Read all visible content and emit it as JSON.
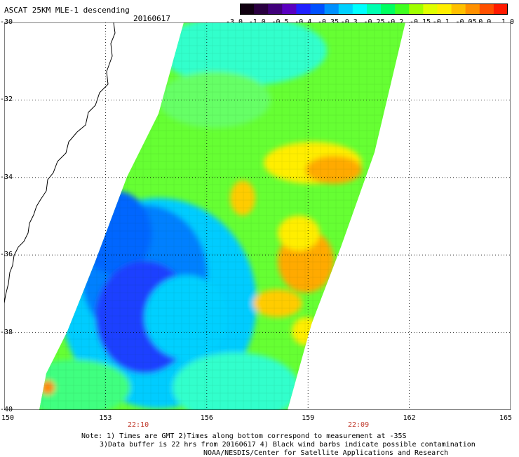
{
  "header": {
    "title": "ASCAT 25KM MLE-1 descending",
    "date": "20160617"
  },
  "colorbar": {
    "labels": [
      "-3.0",
      "-1.0",
      "-0.5",
      "-0.4",
      "-0.35",
      "-0.3",
      "-0.25",
      "-0.2",
      "-0.15",
      "-0.1",
      "-0.05",
      "0.0",
      "1.0"
    ],
    "colors": [
      "#100010",
      "#2a0040",
      "#40007a",
      "#5a00c0",
      "#2020ff",
      "#0050ff",
      "#0090ff",
      "#00d0ff",
      "#00ffff",
      "#00ffb0",
      "#00ff60",
      "#40ff20",
      "#a0ff00",
      "#e0ff00",
      "#ffee00",
      "#ffc000",
      "#ff9000",
      "#ff5000",
      "#ff1a00"
    ]
  },
  "axes": {
    "x_labels": [
      "150",
      "153",
      "156",
      "159",
      "162",
      "165"
    ],
    "y_labels": [
      "-30",
      "-32",
      "-34",
      "-36",
      "-38",
      "-40"
    ]
  },
  "times": [
    "22:10",
    "22:09"
  ],
  "notes": [
    "Note: 1) Times are GMT 2)Times along bottom correspond to measurement at -35S",
    "3)Data buffer is 22 hrs from 20160617 4) Black wind barbs indicate possible contamination",
    "NOAA/NESDIS/Center for Satellite Applications and Research"
  ],
  "map": {
    "lon_range": [
      150,
      165
    ],
    "lat_range": [
      -30,
      -40
    ],
    "swath_description": "descending satellite pass"
  }
}
